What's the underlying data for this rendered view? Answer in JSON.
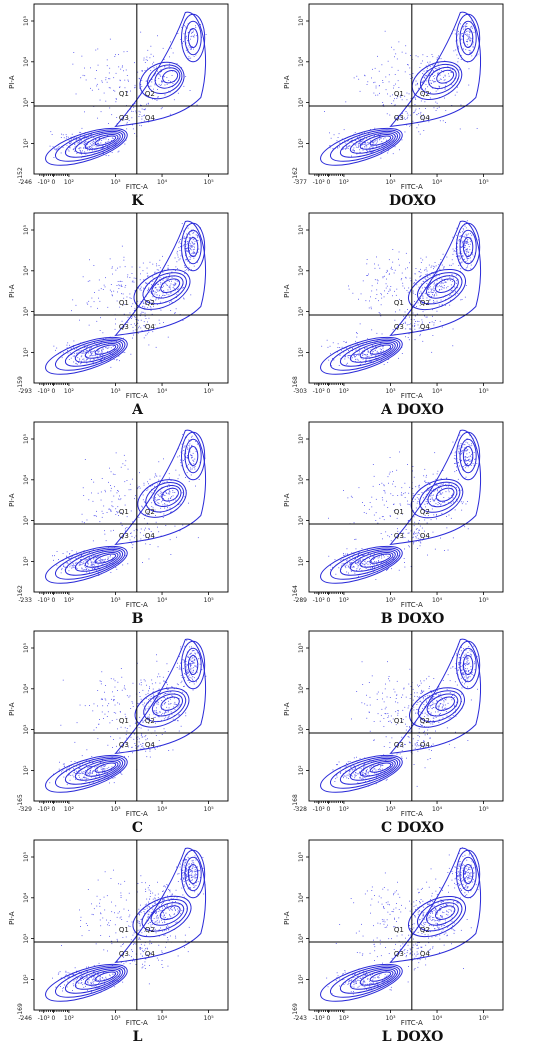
{
  "figure": {
    "accent_color": "#2b2bd6",
    "contour_color": "#2a2ad8",
    "dot_color": "#5555ee",
    "axis_color": "#000000"
  },
  "chart_data": [
    {
      "type": "contour",
      "caption": "K",
      "xlabel": "FITC-A",
      "ylabel": "PI-A",
      "x_min_label": "-246",
      "y_min_label": "-152",
      "xticks": [
        "-10²",
        "0",
        "10²",
        "10³",
        "10⁴",
        "10⁵"
      ],
      "yticks": [
        "10²",
        "10³",
        "10⁴",
        "10⁵"
      ],
      "quadrants": [
        "Q1",
        "Q2",
        "Q3",
        "Q4"
      ],
      "populations": {
        "live": 1.0,
        "early_apoptotic": 0.15,
        "late_apoptotic": 0.35,
        "necrotic": 0.1
      }
    },
    {
      "type": "contour",
      "caption": "DOXO",
      "xlabel": "FITC-A",
      "ylabel": "PI-A",
      "x_min_label": "-377",
      "y_min_label": "-162",
      "xticks": [
        "-10²",
        "0",
        "10²",
        "10³",
        "10⁴",
        "10⁵"
      ],
      "yticks": [
        "10²",
        "10³",
        "10⁴",
        "10⁵"
      ],
      "quadrants": [
        "Q1",
        "Q2",
        "Q3",
        "Q4"
      ],
      "populations": {
        "live": 0.9,
        "early_apoptotic": 0.25,
        "late_apoptotic": 0.6,
        "necrotic": 0.12
      }
    },
    {
      "type": "contour",
      "caption": "A",
      "xlabel": "FITC-A",
      "ylabel": "PI-A",
      "x_min_label": "-293",
      "y_min_label": "-159",
      "xticks": [
        "-10²",
        "0",
        "10²",
        "10³",
        "10⁴",
        "10⁵"
      ],
      "yticks": [
        "10²",
        "10³",
        "10⁴",
        "10⁵"
      ],
      "quadrants": [
        "Q1",
        "Q2",
        "Q3",
        "Q4"
      ],
      "populations": {
        "live": 0.8,
        "early_apoptotic": 0.3,
        "late_apoptotic": 0.9,
        "necrotic": 0.2
      }
    },
    {
      "type": "contour",
      "caption": "A DOXO",
      "xlabel": "FITC-A",
      "ylabel": "PI-A",
      "x_min_label": "-303",
      "y_min_label": "-168",
      "xticks": [
        "-10²",
        "0",
        "10²",
        "10³",
        "10⁴",
        "10⁵"
      ],
      "yticks": [
        "10²",
        "10³",
        "10⁴",
        "10⁵"
      ],
      "quadrants": [
        "Q1",
        "Q2",
        "Q3",
        "Q4"
      ],
      "populations": {
        "live": 0.75,
        "early_apoptotic": 0.35,
        "late_apoptotic": 0.95,
        "necrotic": 0.22
      }
    },
    {
      "type": "contour",
      "caption": "B",
      "xlabel": "FITC-A",
      "ylabel": "PI-A",
      "x_min_label": "-233",
      "y_min_label": "-162",
      "xticks": [
        "-10²",
        "0",
        "10²",
        "10³",
        "10⁴",
        "10⁵"
      ],
      "yticks": [
        "10²",
        "10³",
        "10⁴",
        "10⁵"
      ],
      "quadrants": [
        "Q1",
        "Q2",
        "Q3",
        "Q4"
      ],
      "populations": {
        "live": 0.95,
        "early_apoptotic": 0.2,
        "late_apoptotic": 0.55,
        "necrotic": 0.15
      }
    },
    {
      "type": "contour",
      "caption": "B DOXO",
      "xlabel": "FITC-A",
      "ylabel": "PI-A",
      "x_min_label": "-289",
      "y_min_label": "-164",
      "xticks": [
        "-10²",
        "0",
        "10²",
        "10³",
        "10⁴",
        "10⁵"
      ],
      "yticks": [
        "10²",
        "10³",
        "10⁴",
        "10⁵"
      ],
      "quadrants": [
        "Q1",
        "Q2",
        "Q3",
        "Q4"
      ],
      "populations": {
        "live": 0.85,
        "early_apoptotic": 0.3,
        "late_apoptotic": 0.7,
        "necrotic": 0.18
      }
    },
    {
      "type": "contour",
      "caption": "C",
      "xlabel": "FITC-A",
      "ylabel": "PI-A",
      "x_min_label": "-329",
      "y_min_label": "-165",
      "xticks": [
        "-10²",
        "0",
        "10²",
        "10³",
        "10⁴",
        "10⁵"
      ],
      "yticks": [
        "10²",
        "10³",
        "10⁴",
        "10⁵"
      ],
      "quadrants": [
        "Q1",
        "Q2",
        "Q3",
        "Q4"
      ],
      "populations": {
        "live": 0.85,
        "early_apoptotic": 0.3,
        "late_apoptotic": 0.8,
        "necrotic": 0.18
      }
    },
    {
      "type": "contour",
      "caption": "C DOXO",
      "xlabel": "FITC-A",
      "ylabel": "PI-A",
      "x_min_label": "-328",
      "y_min_label": "-168",
      "xticks": [
        "-10²",
        "0",
        "10²",
        "10³",
        "10⁴",
        "10⁵"
      ],
      "yticks": [
        "10²",
        "10³",
        "10⁴",
        "10⁵"
      ],
      "quadrants": [
        "Q1",
        "Q2",
        "Q3",
        "Q4"
      ],
      "populations": {
        "live": 0.8,
        "early_apoptotic": 0.35,
        "late_apoptotic": 0.85,
        "necrotic": 0.2
      }
    },
    {
      "type": "contour",
      "caption": "L",
      "xlabel": "FITC-A",
      "ylabel": "PI-A",
      "x_min_label": "-246",
      "y_min_label": "-169",
      "xticks": [
        "-10²",
        "0",
        "10²",
        "10³",
        "10⁴",
        "10⁵"
      ],
      "yticks": [
        "10²",
        "10³",
        "10⁴",
        "10⁵"
      ],
      "quadrants": [
        "Q1",
        "Q2",
        "Q3",
        "Q4"
      ],
      "populations": {
        "live": 0.75,
        "early_apoptotic": 0.35,
        "late_apoptotic": 1.0,
        "necrotic": 0.25
      }
    },
    {
      "type": "contour",
      "caption": "L DOXO",
      "xlabel": "FITC-A",
      "ylabel": "PI-A",
      "x_min_label": "-243",
      "y_min_label": "-169",
      "xticks": [
        "-10²",
        "0",
        "10²",
        "10³",
        "10⁴",
        "10⁵"
      ],
      "yticks": [
        "10²",
        "10³",
        "10⁴",
        "10⁵"
      ],
      "quadrants": [
        "Q1",
        "Q2",
        "Q3",
        "Q4"
      ],
      "populations": {
        "live": 0.7,
        "early_apoptotic": 0.4,
        "late_apoptotic": 0.95,
        "necrotic": 0.25
      }
    }
  ]
}
